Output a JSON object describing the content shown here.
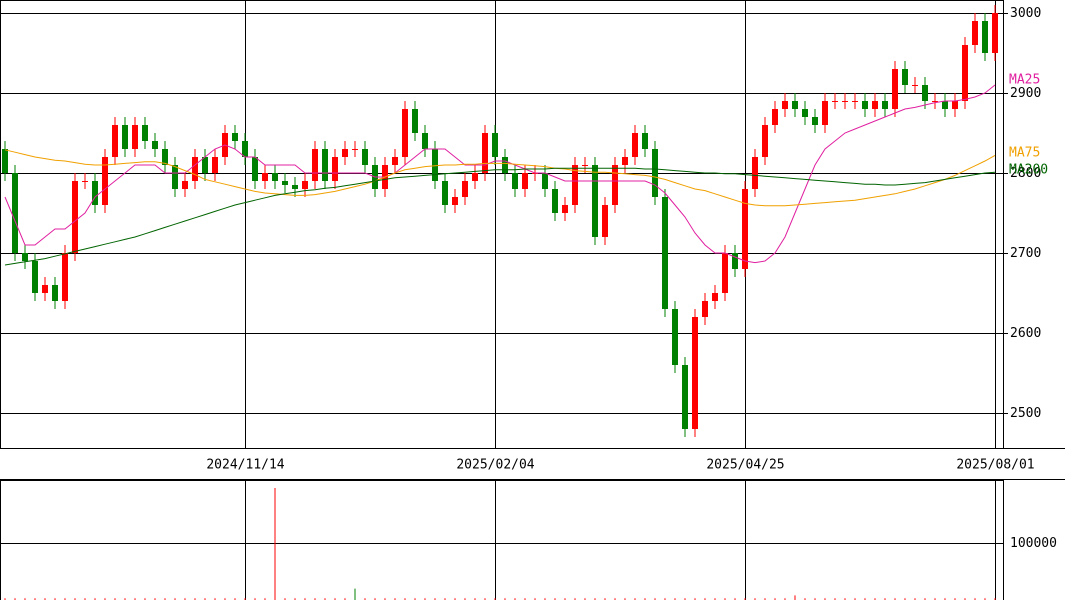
{
  "chart_data": {
    "type": "candlestick",
    "categories": [
      null,
      null,
      null,
      null,
      null,
      null,
      null,
      null,
      null,
      null,
      null,
      null,
      null,
      null,
      null,
      null,
      null,
      null,
      null,
      null,
      null,
      null,
      null,
      null,
      "2024/11/14",
      null,
      null,
      null,
      null,
      null,
      null,
      null,
      null,
      null,
      null,
      null,
      null,
      null,
      null,
      null,
      null,
      null,
      null,
      null,
      null,
      null,
      null,
      null,
      null,
      "2025/02/04",
      null,
      null,
      null,
      null,
      null,
      null,
      null,
      null,
      null,
      null,
      null,
      null,
      null,
      null,
      null,
      null,
      null,
      null,
      null,
      null,
      null,
      null,
      null,
      null,
      "2025/04/25",
      null,
      null,
      null,
      null,
      null,
      null,
      null,
      null,
      null,
      null,
      null,
      null,
      null,
      null,
      null,
      null,
      null,
      null,
      null,
      null,
      null,
      null,
      null,
      null,
      "2025/08/01"
    ],
    "open": [
      2830,
      2800,
      2700,
      2690,
      2650,
      2660,
      2640,
      2700,
      2790,
      2790,
      2760,
      2820,
      2860,
      2830,
      2860,
      2840,
      2830,
      2810,
      2780,
      2790,
      2820,
      2800,
      2820,
      2850,
      2840,
      2820,
      2790,
      2800,
      2790,
      2785,
      2780,
      2790,
      2830,
      2790,
      2820,
      2830,
      2830,
      2810,
      2780,
      2810,
      2820,
      2880,
      2850,
      2830,
      2790,
      2760,
      2770,
      2790,
      2800,
      2850,
      2820,
      2800,
      2780,
      2800,
      2800,
      2780,
      2750,
      2760,
      2810,
      2810,
      2720,
      2760,
      2810,
      2820,
      2850,
      2830,
      2770,
      2630,
      2560,
      2480,
      2620,
      2640,
      2650,
      2700,
      2680,
      2780,
      2820,
      2860,
      2880,
      2890,
      2880,
      2870,
      2860,
      2890,
      2890,
      2890,
      2890,
      2880,
      2890,
      2880,
      2930,
      2910,
      2910,
      2890,
      2890,
      2880,
      2890,
      2960,
      2990,
      2950
    ],
    "high": [
      2840,
      2810,
      2710,
      2700,
      2670,
      2670,
      2710,
      2800,
      2800,
      2800,
      2830,
      2870,
      2870,
      2870,
      2870,
      2850,
      2840,
      2820,
      2800,
      2830,
      2830,
      2830,
      2860,
      2860,
      2850,
      2830,
      2810,
      2810,
      2800,
      2795,
      2800,
      2840,
      2840,
      2830,
      2840,
      2840,
      2840,
      2820,
      2820,
      2830,
      2890,
      2890,
      2860,
      2840,
      2800,
      2780,
      2800,
      2810,
      2860,
      2860,
      2830,
      2810,
      2810,
      2810,
      2810,
      2790,
      2770,
      2820,
      2820,
      2820,
      2770,
      2820,
      2830,
      2860,
      2860,
      2840,
      2780,
      2640,
      2570,
      2630,
      2650,
      2660,
      2710,
      2710,
      2790,
      2830,
      2870,
      2890,
      2900,
      2900,
      2890,
      2880,
      2900,
      2900,
      2900,
      2900,
      2900,
      2900,
      2900,
      2940,
      2940,
      2920,
      2920,
      2900,
      2900,
      2900,
      2970,
      3000,
      3000,
      3010
    ],
    "low": [
      2790,
      2690,
      2680,
      2640,
      2640,
      2630,
      2630,
      2690,
      2780,
      2750,
      2750,
      2810,
      2820,
      2820,
      2830,
      2820,
      2800,
      2770,
      2770,
      2780,
      2790,
      2790,
      2810,
      2830,
      2810,
      2780,
      2780,
      2780,
      2775,
      2770,
      2770,
      2780,
      2780,
      2780,
      2810,
      2820,
      2800,
      2770,
      2770,
      2800,
      2810,
      2840,
      2820,
      2780,
      2750,
      2750,
      2760,
      2780,
      2790,
      2810,
      2790,
      2770,
      2770,
      2790,
      2770,
      2740,
      2740,
      2750,
      2800,
      2710,
      2710,
      2750,
      2800,
      2810,
      2820,
      2760,
      2620,
      2550,
      2470,
      2470,
      2610,
      2630,
      2640,
      2670,
      2670,
      2770,
      2810,
      2850,
      2870,
      2870,
      2860,
      2850,
      2850,
      2880,
      2880,
      2880,
      2870,
      2870,
      2870,
      2870,
      2900,
      2900,
      2880,
      2880,
      2870,
      2870,
      2880,
      2950,
      2940,
      2940
    ],
    "close": [
      2800,
      2700,
      2690,
      2650,
      2660,
      2640,
      2700,
      2790,
      2790,
      2760,
      2820,
      2860,
      2830,
      2860,
      2840,
      2830,
      2810,
      2780,
      2790,
      2820,
      2800,
      2820,
      2850,
      2840,
      2820,
      2790,
      2800,
      2790,
      2785,
      2780,
      2790,
      2830,
      2790,
      2820,
      2830,
      2830,
      2810,
      2780,
      2810,
      2820,
      2880,
      2850,
      2830,
      2790,
      2760,
      2770,
      2790,
      2800,
      2850,
      2820,
      2800,
      2780,
      2800,
      2800,
      2780,
      2750,
      2760,
      2810,
      2810,
      2720,
      2760,
      2810,
      2820,
      2850,
      2830,
      2770,
      2630,
      2560,
      2480,
      2620,
      2640,
      2650,
      2700,
      2680,
      2780,
      2820,
      2860,
      2880,
      2890,
      2880,
      2870,
      2860,
      2890,
      2890,
      2890,
      2890,
      2880,
      2890,
      2880,
      2930,
      2910,
      2910,
      2890,
      2890,
      2880,
      2890,
      2960,
      2990,
      2950,
      3000
    ],
    "up_color": "#ff0000",
    "down_color": "#008000",
    "ylim": [
      2456.25,
      3016.25
    ],
    "yticks": [
      2500,
      2600,
      2700,
      2800,
      2900,
      3000
    ],
    "grid": true,
    "series": [
      {
        "name": "MA25",
        "color": "#e020a0",
        "values": [
          2770,
          2740,
          2710,
          2710,
          2720,
          2730,
          2730,
          2740,
          2750,
          2770,
          2780,
          2790,
          2800,
          2810,
          2810,
          2810,
          2800,
          2800,
          2800,
          2810,
          2820,
          2830,
          2835,
          2830,
          2820,
          2820,
          2810,
          2810,
          2810,
          2810,
          2800,
          2800,
          2800,
          2800,
          2800,
          2800,
          2800,
          2795,
          2795,
          2800,
          2810,
          2820,
          2830,
          2830,
          2830,
          2820,
          2810,
          2810,
          2810,
          2815,
          2815,
          2810,
          2805,
          2800,
          2800,
          2795,
          2790,
          2790,
          2790,
          2790,
          2790,
          2790,
          2790,
          2790,
          2790,
          2785,
          2775,
          2760,
          2745,
          2725,
          2710,
          2700,
          2700,
          2695,
          2690,
          2688,
          2690,
          2700,
          2720,
          2750,
          2780,
          2810,
          2830,
          2840,
          2850,
          2855,
          2860,
          2865,
          2870,
          2875,
          2880,
          2882,
          2885,
          2888,
          2890,
          2890,
          2892,
          2895,
          2900,
          2910
        ]
      },
      {
        "name": "MA75",
        "color": "#f0a000",
        "values": [
          2829,
          2826,
          2823,
          2820,
          2818,
          2816,
          2815,
          2813,
          2811,
          2810,
          2810,
          2811,
          2812,
          2813,
          2814,
          2814,
          2812,
          2808,
          2803,
          2798,
          2792,
          2789,
          2786,
          2783,
          2780,
          2777,
          2775,
          2774,
          2773,
          2772,
          2772,
          2773,
          2775,
          2777,
          2780,
          2783,
          2786,
          2790,
          2795,
          2800,
          2804,
          2806,
          2808,
          2809,
          2810,
          2810,
          2811,
          2811,
          2812,
          2812,
          2812,
          2811,
          2810,
          2809,
          2808,
          2806,
          2805,
          2803,
          2802,
          2801,
          2801,
          2800,
          2799,
          2798,
          2797,
          2795,
          2792,
          2788,
          2784,
          2780,
          2778,
          2774,
          2770,
          2766,
          2762,
          2760,
          2759,
          2759,
          2759,
          2760,
          2761,
          2762,
          2763,
          2764,
          2765,
          2766,
          2768,
          2770,
          2772,
          2774,
          2777,
          2780,
          2784,
          2788,
          2792,
          2797,
          2803,
          2809,
          2815,
          2822
        ]
      },
      {
        "name": "MA200",
        "color": "#006400",
        "values": [
          2685,
          2687,
          2689,
          2691,
          2693,
          2696,
          2699,
          2702,
          2705,
          2708,
          2711,
          2714,
          2717,
          2720,
          2724,
          2728,
          2732,
          2736,
          2740,
          2744,
          2748,
          2752,
          2756,
          2760,
          2763,
          2766,
          2769,
          2772,
          2774,
          2776,
          2778,
          2779,
          2781,
          2782,
          2784,
          2786,
          2788,
          2790,
          2792,
          2794,
          2795,
          2796,
          2797,
          2798,
          2799,
          2800,
          2801,
          2802,
          2803,
          2804,
          2804,
          2804,
          2805,
          2805,
          2805,
          2806,
          2806,
          2806,
          2806,
          2806,
          2806,
          2806,
          2806,
          2806,
          2805,
          2805,
          2804,
          2803,
          2802,
          2801,
          2800,
          2800,
          2799,
          2799,
          2798,
          2797,
          2796,
          2795,
          2794,
          2793,
          2792,
          2791,
          2790,
          2789,
          2788,
          2787,
          2786,
          2786,
          2785,
          2785,
          2786,
          2787,
          2788,
          2790,
          2792,
          2794,
          2796,
          2798,
          2800,
          2801
        ]
      }
    ],
    "volume": {
      "color": "#ff0000",
      "values": [
        3000,
        3000,
        3000,
        3000,
        3000,
        3000,
        3000,
        3000,
        3000,
        3000,
        3000,
        3000,
        3000,
        3000,
        3000,
        3000,
        3000,
        3000,
        3000,
        3000,
        3000,
        3000,
        3000,
        3000,
        3000,
        3000,
        3000,
        196000,
        3000,
        3000,
        3000,
        3000,
        3000,
        3000,
        3000,
        20000,
        3000,
        3000,
        3000,
        3000,
        3000,
        3000,
        3000,
        3000,
        3000,
        3000,
        3000,
        3000,
        3000,
        3000,
        3000,
        3000,
        3000,
        3000,
        3000,
        3000,
        3000,
        3000,
        3000,
        3000,
        3000,
        3000,
        3000,
        3000,
        3000,
        3000,
        3000,
        3000,
        3000,
        3000,
        3000,
        3000,
        3000,
        3000,
        3000,
        3000,
        3000,
        3000,
        3000,
        8000,
        3000,
        3000,
        3000,
        3000,
        3000,
        3000,
        3000,
        3000,
        3000,
        3000,
        3000,
        3000,
        3000,
        3000,
        3000,
        3000,
        3000,
        3000,
        3000,
        3000
      ],
      "ylim": [
        0,
        210000
      ],
      "yticks": [
        100000
      ]
    }
  }
}
